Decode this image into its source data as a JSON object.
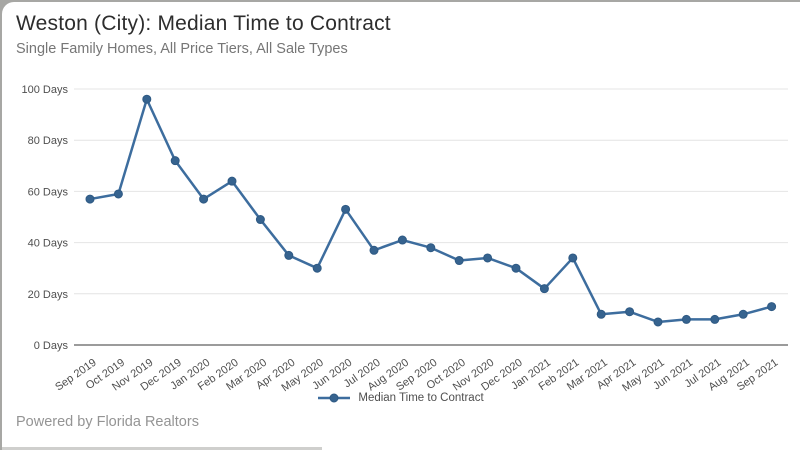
{
  "header": {
    "title": "Weston (City): Median Time to Contract",
    "subtitle": "Single Family Homes, All Price Tiers, All Sale Types"
  },
  "legend": {
    "label": "Median Time to Contract"
  },
  "footer": {
    "text": "Powered by Florida Realtors"
  },
  "colors": {
    "line": "#3d6d9e",
    "marker_fill": "#36638f",
    "marker_stroke": "#2f5a84",
    "grid": "#e4e4e4",
    "axis_line": "#9b9b9b",
    "tick_text": "#4f4f4f",
    "title_text": "#2d2d2d",
    "subtitle_text": "#767676",
    "footer_text": "#949494"
  },
  "chart_data": {
    "type": "line",
    "title": "Weston (City): Median Time to Contract",
    "subtitle": "Single Family Homes, All Price Tiers, All Sale Types",
    "categories": [
      "Sep 2019",
      "Oct 2019",
      "Nov 2019",
      "Dec 2019",
      "Jan 2020",
      "Feb 2020",
      "Mar 2020",
      "Apr 2020",
      "May 2020",
      "Jun 2020",
      "Jul 2020",
      "Aug 2020",
      "Sep 2020",
      "Oct 2020",
      "Nov 2020",
      "Dec 2020",
      "Jan 2021",
      "Feb 2021",
      "Mar 2021",
      "Apr 2021",
      "May 2021",
      "Jun 2021",
      "Jul 2021",
      "Aug 2021",
      "Sep 2021"
    ],
    "series": [
      {
        "name": "Median Time to Contract",
        "values": [
          57,
          59,
          96,
          72,
          57,
          64,
          49,
          35,
          30,
          53,
          37,
          41,
          38,
          33,
          34,
          30,
          22,
          34,
          12,
          13,
          9,
          10,
          10,
          12,
          15
        ]
      }
    ],
    "xlabel": "",
    "ylabel": "",
    "ylim": [
      0,
      100
    ],
    "yticks": [
      0,
      20,
      40,
      60,
      80,
      100
    ],
    "ytick_labels": [
      "0 Days",
      "20 Days",
      "40 Days",
      "60 Days",
      "80 Days",
      "100 Days"
    ],
    "grid": true,
    "legend_position": "bottom"
  }
}
